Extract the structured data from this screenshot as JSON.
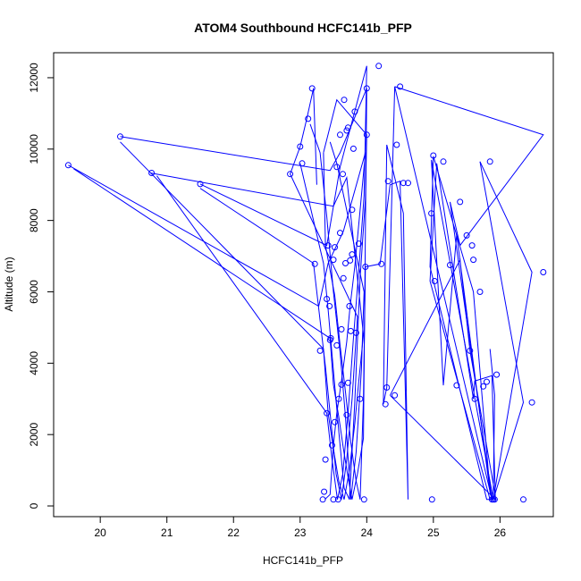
{
  "chart_data": {
    "type": "line",
    "title": "ATOM4 Southbound HCFC141b_PFP",
    "xlabel": "HCFC141b_PFP",
    "ylabel": "Altitude (m)",
    "xlim": [
      19.3,
      26.8
    ],
    "ylim": [
      -300,
      12700
    ],
    "xticks": [
      20,
      21,
      22,
      23,
      24,
      25,
      26
    ],
    "yticks": [
      0,
      2000,
      4000,
      6000,
      8000,
      10000,
      12000
    ],
    "grid": false,
    "legend": "none",
    "color": "#0000ff",
    "series": [
      {
        "x": [
          23.37,
          23.45,
          23.5,
          23.55,
          23.62,
          23.7,
          23.75,
          23.82,
          23.9,
          23.98,
          23.65,
          23.42,
          23.28,
          19.52
        ],
        "y": [
          180,
          320,
          1700,
          2600,
          3500,
          4600,
          5600,
          6700,
          8300,
          9900,
          7700,
          6800,
          5600,
          9550
        ]
      },
      {
        "x": [
          19.6,
          23.45,
          23.5,
          23.58,
          23.65,
          23.72,
          23.78,
          23.86,
          23.95,
          24.0,
          23.6,
          23.45,
          20.3
        ],
        "y": [
          9450,
          4700,
          3400,
          2500,
          1600,
          800,
          180,
          900,
          1900,
          11700,
          9900,
          9400,
          10350
        ]
      },
      {
        "x": [
          20.3,
          23.35,
          23.42,
          23.5,
          23.58,
          23.66,
          23.74,
          23.82,
          23.88,
          23.95,
          23.7,
          23.5,
          20.75
        ],
        "y": [
          10200,
          4400,
          2600,
          1600,
          700,
          180,
          1000,
          2300,
          3500,
          4800,
          9200,
          8400,
          9330
        ]
      },
      {
        "x": [
          20.85,
          23.4,
          23.48,
          23.56,
          23.64,
          23.72,
          23.8,
          23.88,
          23.96,
          24.0,
          23.6,
          23.4,
          21.5
        ],
        "y": [
          9250,
          2600,
          1300,
          180,
          900,
          2600,
          4700,
          6600,
          8700,
          12330,
          9500,
          7300,
          9020
        ]
      },
      {
        "x": [
          21.5,
          23.2,
          23.3,
          23.38,
          23.46,
          23.54,
          23.62,
          23.7,
          23.78,
          23.86,
          22.85,
          23.0,
          23.1,
          23.2,
          23.25
        ],
        "y": [
          8900,
          6800,
          5200,
          3900,
          2400,
          900,
          180,
          1300,
          3000,
          5300,
          9300,
          10070,
          10850,
          11700,
          9000
        ]
      },
      {
        "x": [
          23.15,
          23.3,
          23.4,
          23.5,
          23.6,
          23.68,
          23.76,
          23.84,
          23.92,
          23.96,
          23.55,
          23.45
        ],
        "y": [
          10700,
          9900,
          8100,
          6000,
          4300,
          2500,
          180,
          1500,
          3800,
          6000,
          9600,
          10200
        ]
      },
      {
        "x": [
          23.0,
          23.35,
          23.42,
          23.5,
          23.58,
          23.66,
          23.74,
          23.82,
          23.9,
          23.98,
          24.0,
          23.55,
          23.35
        ],
        "y": [
          9600,
          6800,
          5500,
          3800,
          2100,
          500,
          180,
          2900,
          6400,
          8600,
          10400,
          11380,
          9900
        ]
      },
      {
        "x": [
          23.35,
          23.38,
          23.45,
          23.52,
          23.6,
          23.68,
          23.76,
          23.84,
          23.9,
          23.95,
          23.98
        ],
        "y": [
          9900,
          7300,
          6600,
          5900,
          4500,
          3200,
          1800,
          700,
          180,
          3000,
          6700
        ]
      },
      {
        "x": [
          23.98,
          24.2,
          24.35,
          24.5,
          24.62,
          24.55,
          24.3,
          24.25,
          24.3,
          24.42,
          25.88,
          25.9,
          25.92,
          25.85
        ],
        "y": [
          6700,
          6780,
          9000,
          9100,
          180,
          8200,
          10120,
          2850,
          3320,
          11750,
          180,
          400,
          3100,
          4400
        ]
      },
      {
        "x": [
          24.42,
          26.65,
          25.4,
          25.25,
          25.88,
          25.85,
          25.6,
          25.0,
          24.95,
          25.8,
          25.9,
          26.35,
          25.7
        ],
        "y": [
          11750,
          10400,
          7300,
          8520,
          180,
          400,
          6000,
          9800,
          6700,
          180,
          180,
          2900,
          9650
        ]
      },
      {
        "x": [
          25.7,
          26.48,
          25.9,
          25.85,
          25.35,
          25.15,
          24.97,
          25.9,
          25.92,
          25.55,
          25.4,
          24.35
        ],
        "y": [
          9650,
          6550,
          180,
          400,
          7600,
          3380,
          9700,
          180,
          400,
          4350,
          6900,
          3100
        ]
      },
      {
        "x": [
          24.35,
          25.93,
          25.88,
          25.62,
          25.6,
          25.05,
          24.95,
          25.85
        ],
        "y": [
          3100,
          180,
          3650,
          3500,
          3000,
          9600,
          6300,
          180
        ]
      }
    ],
    "markers": {
      "x": [
        19.52,
        20.3,
        20.77,
        21.5,
        22.85,
        23.0,
        23.03,
        23.12,
        23.18,
        23.22,
        23.3,
        23.34,
        23.36,
        23.38,
        23.4,
        23.42,
        23.44,
        23.46,
        23.5,
        23.52,
        23.55,
        23.57,
        23.6,
        23.62,
        23.64,
        23.66,
        23.68,
        23.7,
        23.72,
        23.74,
        23.76,
        23.78,
        23.8,
        23.82,
        23.84,
        23.88,
        23.9,
        23.96,
        23.98,
        24.0,
        24.0,
        24.18,
        24.22,
        24.28,
        24.3,
        24.32,
        24.42,
        24.45,
        24.5,
        24.55,
        24.62,
        24.97,
        24.98,
        25.0,
        25.02,
        25.15,
        25.25,
        25.35,
        25.4,
        25.5,
        25.55,
        25.58,
        25.6,
        25.62,
        25.7,
        25.75,
        25.8,
        25.85,
        25.88,
        25.9,
        25.92,
        25.95,
        26.35,
        26.48,
        26.65,
        23.6,
        23.5,
        23.58,
        23.7,
        23.75,
        23.65,
        23.55,
        23.45,
        23.4,
        23.48,
        23.52,
        23.62,
        23.72,
        23.78
      ],
      "y": [
        9550,
        10350,
        9330,
        9020,
        9300,
        10070,
        9600,
        10850,
        11700,
        6780,
        4350,
        180,
        400,
        1300,
        2600,
        7300,
        5600,
        4700,
        6900,
        7250,
        9500,
        180,
        7650,
        3400,
        9300,
        11380,
        6800,
        10520,
        10600,
        5600,
        4900,
        8300,
        10010,
        11050,
        4850,
        7350,
        3000,
        180,
        6700,
        10400,
        11700,
        12330,
        6780,
        2850,
        3320,
        9100,
        3100,
        10120,
        11750,
        9050,
        9050,
        8200,
        180,
        9820,
        6300,
        9650,
        6750,
        3380,
        8520,
        7580,
        4350,
        7300,
        6900,
        3000,
        6000,
        3350,
        3480,
        9650,
        180,
        180,
        180,
        3680,
        180,
        2900,
        6550,
        10400,
        180,
        3000,
        2550,
        6880,
        6380,
        4500,
        4650,
        5800,
        1700,
        2350,
        4950,
        3450,
        7050
      ]
    }
  }
}
